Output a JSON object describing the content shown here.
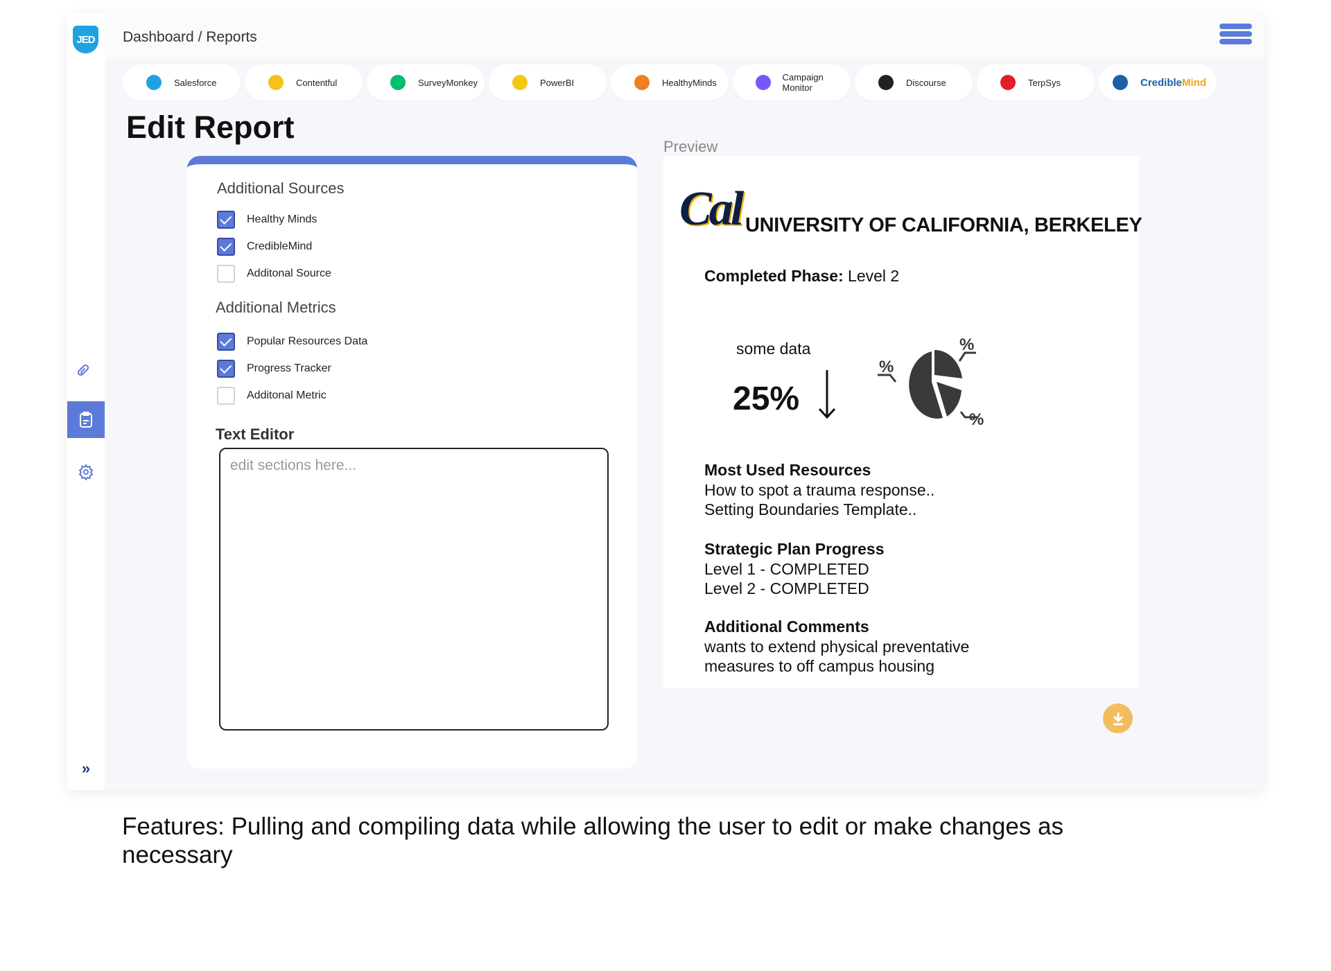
{
  "header": {
    "logo": "JED",
    "breadcrumb": "Dashboard / Reports"
  },
  "sidebar": {
    "items": [
      {
        "icon": "link-icon",
        "active": false
      },
      {
        "icon": "clipboard-icon",
        "active": true
      },
      {
        "icon": "gear-icon",
        "active": false
      }
    ],
    "expand_icon": "double-chevron-right-icon"
  },
  "integrations": [
    {
      "label": "Salesforce",
      "color": "#1ea3e0"
    },
    {
      "label": "Contentful",
      "color": "#f4c21b"
    },
    {
      "label": "SurveyMonkey",
      "color": "#00bf6f"
    },
    {
      "label": "PowerBI",
      "color": "#f2c811"
    },
    {
      "label": "HealthyMinds",
      "color": "#f07f1f"
    },
    {
      "label": "Campaign Monitor",
      "color": "#7856ff"
    },
    {
      "label": "Discourse",
      "color": "#222222"
    },
    {
      "label": "TerpSys",
      "color": "#e21f26"
    },
    {
      "label": "",
      "brand_a": "Credible",
      "brand_b": "Mind",
      "color": "#1d5fa8"
    }
  ],
  "page_title": "Edit Report",
  "editor": {
    "sources_title": "Additional Sources",
    "sources": [
      {
        "label": "Healthy Minds",
        "checked": true
      },
      {
        "label": "CredibleMind",
        "checked": true
      },
      {
        "label": "Additonal Source",
        "checked": false
      }
    ],
    "metrics_title": "Additional Metrics",
    "metrics": [
      {
        "label": "Popular Resources Data",
        "checked": true
      },
      {
        "label": "Progress Tracker",
        "checked": true
      },
      {
        "label": "Additonal Metric",
        "checked": false
      }
    ],
    "text_editor_label": "Text Editor",
    "text_editor_placeholder": "edit sections here...",
    "text_editor_value": ""
  },
  "preview": {
    "label": "Preview",
    "logo_text": "Cal",
    "university": "UNIVERSITY OF CALIFORNIA, BERKELEY",
    "phase_label": "Completed Phase:",
    "phase_value": "Level 2",
    "stat_label": "some data",
    "stat_value": "25%",
    "stat_trend": "down",
    "pie_labels": [
      "%",
      "%",
      "%"
    ],
    "sections": [
      {
        "title": "Most Used Resources",
        "lines": [
          "How to spot a trauma response..",
          "Setting Boundaries Template.."
        ]
      },
      {
        "title": "Strategic Plan Progress",
        "lines": [
          "Level 1 - COMPLETED",
          "Level 2 - COMPLETED"
        ]
      },
      {
        "title": "Additional Comments",
        "lines": [
          "wants to extend physical preventative",
          "measures to off campus housing"
        ]
      }
    ]
  },
  "download_icon": "download-icon",
  "colors": {
    "accent": "#5c7bd9",
    "download": "#f3bd5f"
  },
  "caption": "Features: Pulling and compiling data while allowing the user to edit or make changes as necessary"
}
